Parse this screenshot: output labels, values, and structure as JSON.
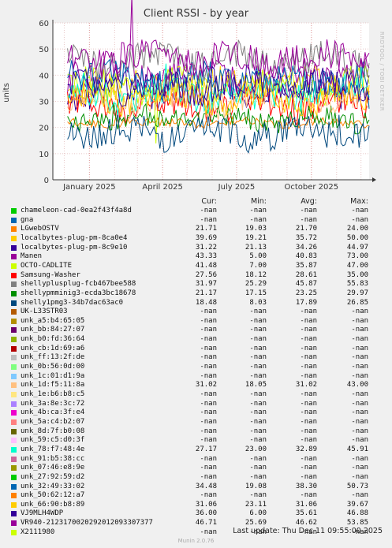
{
  "chart_data": {
    "type": "line",
    "title": "Client RSSI - by year",
    "ylabel": "units",
    "ylim": [
      0,
      60
    ],
    "yticks": [
      0,
      10,
      20,
      30,
      40,
      50,
      60
    ],
    "xlim": [
      "2024-11-17",
      "2025-12-11"
    ],
    "xticks": [
      {
        "label": "January 2025",
        "date": "2025-01-01"
      },
      {
        "label": "April 2025",
        "date": "2025-04-01"
      },
      {
        "label": "July 2025",
        "date": "2025-07-01"
      },
      {
        "label": "October 2025",
        "date": "2025-10-01"
      }
    ],
    "grid": true,
    "series": [
      {
        "name": "chameleon-cad-0ea2f43f4a8d",
        "color": "#00cc00",
        "cur": "-nan",
        "min": "-nan",
        "avg": "-nan",
        "max": "-nan"
      },
      {
        "name": "gna",
        "color": "#0066b3",
        "cur": "-nan",
        "min": "-nan",
        "avg": "-nan",
        "max": "-nan"
      },
      {
        "name": "LGwebOSTV",
        "color": "#ff8000",
        "cur": "21.71",
        "min": "19.03",
        "avg": "21.70",
        "max": "24.00"
      },
      {
        "name": "localbytes-plug-pm-8ca0e4",
        "color": "#ffcc00",
        "cur": "39.69",
        "min": "19.21",
        "avg": "35.72",
        "max": "50.00"
      },
      {
        "name": "localbytes-plug-pm-8c9e10",
        "color": "#330099",
        "cur": "31.22",
        "min": "21.13",
        "avg": "34.26",
        "max": "44.97"
      },
      {
        "name": "Manen",
        "color": "#990099",
        "cur": "43.33",
        "min": "5.00",
        "avg": "40.83",
        "max": "73.00"
      },
      {
        "name": "OCTO-CADLITE",
        "color": "#ccff00",
        "cur": "41.48",
        "min": "7.00",
        "avg": "35.87",
        "max": "47.00"
      },
      {
        "name": "Samsung-Washer",
        "color": "#ff0000",
        "cur": "27.56",
        "min": "18.12",
        "avg": "28.61",
        "max": "35.00"
      },
      {
        "name": "shellyplusplug-fcb467bee588",
        "color": "#808080",
        "cur": "31.97",
        "min": "25.29",
        "avg": "45.87",
        "max": "55.83"
      },
      {
        "name": "shellypmminig3-ecda3bc18678",
        "color": "#008f00",
        "cur": "21.17",
        "min": "17.15",
        "avg": "23.25",
        "max": "29.97"
      },
      {
        "name": "shelly1pmg3-34b7dac63ac0",
        "color": "#00487d",
        "cur": "18.48",
        "min": "8.03",
        "avg": "17.89",
        "max": "26.85"
      },
      {
        "name": "UK-L33STR03",
        "color": "#b35a00",
        "cur": "-nan",
        "min": "-nan",
        "avg": "-nan",
        "max": "-nan"
      },
      {
        "name": "unk_a5:b4:65:05",
        "color": "#b38f00",
        "cur": "-nan",
        "min": "-nan",
        "avg": "-nan",
        "max": "-nan"
      },
      {
        "name": "unk_bb:84:27:07",
        "color": "#6b006b",
        "cur": "-nan",
        "min": "-nan",
        "avg": "-nan",
        "max": "-nan"
      },
      {
        "name": "unk_b0:fd:36:64",
        "color": "#8fb300",
        "cur": "-nan",
        "min": "-nan",
        "avg": "-nan",
        "max": "-nan"
      },
      {
        "name": "unk_cb:1d:69:a6",
        "color": "#b30000",
        "cur": "-nan",
        "min": "-nan",
        "avg": "-nan",
        "max": "-nan"
      },
      {
        "name": "unk_ff:13:2f:de",
        "color": "#bebebe",
        "cur": "-nan",
        "min": "-nan",
        "avg": "-nan",
        "max": "-nan"
      },
      {
        "name": "unk_0b:56:0d:00",
        "color": "#80ff80",
        "cur": "-nan",
        "min": "-nan",
        "avg": "-nan",
        "max": "-nan"
      },
      {
        "name": "unk_1c:01:d1:9a",
        "color": "#80c9ff",
        "cur": "-nan",
        "min": "-nan",
        "avg": "-nan",
        "max": "-nan"
      },
      {
        "name": "unk_1d:f5:11:8a",
        "color": "#ffc080",
        "cur": "31.02",
        "min": "18.05",
        "avg": "31.02",
        "max": "43.00"
      },
      {
        "name": "unk_1e:b6:b8:c5",
        "color": "#ffe680",
        "cur": "-nan",
        "min": "-nan",
        "avg": "-nan",
        "max": "-nan"
      },
      {
        "name": "unk_3a:8e:3c:72",
        "color": "#aa80ff",
        "cur": "-nan",
        "min": "-nan",
        "avg": "-nan",
        "max": "-nan"
      },
      {
        "name": "unk_4b:ca:3f:e4",
        "color": "#ee00cc",
        "cur": "-nan",
        "min": "-nan",
        "avg": "-nan",
        "max": "-nan"
      },
      {
        "name": "unk_5a:c4:b2:07",
        "color": "#ff8080",
        "cur": "-nan",
        "min": "-nan",
        "avg": "-nan",
        "max": "-nan"
      },
      {
        "name": "unk_8d:7f:b0:08",
        "color": "#666600",
        "cur": "-nan",
        "min": "-nan",
        "avg": "-nan",
        "max": "-nan"
      },
      {
        "name": "unk_59:c5:d0:3f",
        "color": "#ffbfff",
        "cur": "-nan",
        "min": "-nan",
        "avg": "-nan",
        "max": "-nan"
      },
      {
        "name": "unk_78:f7:48:4e",
        "color": "#00ffcc",
        "cur": "27.17",
        "min": "23.00",
        "avg": "32.89",
        "max": "45.91"
      },
      {
        "name": "unk_91:b5:38:cc",
        "color": "#cc6699",
        "cur": "-nan",
        "min": "-nan",
        "avg": "-nan",
        "max": "-nan"
      },
      {
        "name": "unk_07:46:e8:9e",
        "color": "#999900",
        "cur": "-nan",
        "min": "-nan",
        "avg": "-nan",
        "max": "-nan"
      },
      {
        "name": "unk_27:92:59:d2",
        "color": "#00cc00",
        "cur": "-nan",
        "min": "-nan",
        "avg": "-nan",
        "max": "-nan"
      },
      {
        "name": "unk_32:49:33:02",
        "color": "#0066b3",
        "cur": "34.48",
        "min": "19.08",
        "avg": "38.30",
        "max": "50.73"
      },
      {
        "name": "unk_50:62:12:a7",
        "color": "#ff8000",
        "cur": "-nan",
        "min": "-nan",
        "avg": "-nan",
        "max": "-nan"
      },
      {
        "name": "unk_66:90:b8:89",
        "color": "#ffcc00",
        "cur": "31.06",
        "min": "23.11",
        "avg": "31.06",
        "max": "39.67"
      },
      {
        "name": "VJ9MLH4WDP",
        "color": "#330099",
        "cur": "36.00",
        "min": "6.00",
        "avg": "35.61",
        "max": "46.88"
      },
      {
        "name": "VR940-2123170020292012093307377",
        "color": "#990099",
        "cur": "46.71",
        "min": "25.69",
        "avg": "46.62",
        "max": "53.85"
      },
      {
        "name": "X2111980",
        "color": "#ccff00",
        "cur": "-nan",
        "min": "-nan",
        "avg": "-nan",
        "max": "-nan"
      }
    ]
  },
  "legend": {
    "cur": "Cur:",
    "min": "Min:",
    "avg": "Avg:",
    "max": "Max:"
  },
  "footer": "Last update: Thu Dec 11 09:55:00 2025",
  "munin_version": "Munin 2.0.76",
  "side_credit": "RRDTOOL / TOBI OETIKER"
}
